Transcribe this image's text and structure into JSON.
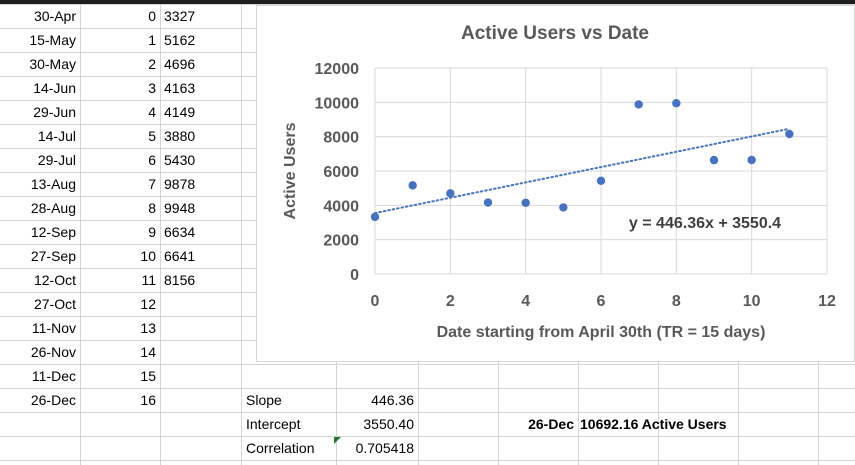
{
  "rows": [
    {
      "date": "30-Apr",
      "idx": "0",
      "users": "3327"
    },
    {
      "date": "15-May",
      "idx": "1",
      "users": "5162"
    },
    {
      "date": "30-May",
      "idx": "2",
      "users": "4696"
    },
    {
      "date": "14-Jun",
      "idx": "3",
      "users": "4163"
    },
    {
      "date": "29-Jun",
      "idx": "4",
      "users": "4149"
    },
    {
      "date": "14-Jul",
      "idx": "5",
      "users": "3880"
    },
    {
      "date": "29-Jul",
      "idx": "6",
      "users": "5430"
    },
    {
      "date": "13-Aug",
      "idx": "7",
      "users": "9878"
    },
    {
      "date": "28-Aug",
      "idx": "8",
      "users": "9948"
    },
    {
      "date": "12-Sep",
      "idx": "9",
      "users": "6634"
    },
    {
      "date": "27-Sep",
      "idx": "10",
      "users": "6641"
    },
    {
      "date": "12-Oct",
      "idx": "11",
      "users": "8156"
    },
    {
      "date": "27-Oct",
      "idx": "12",
      "users": ""
    },
    {
      "date": "11-Nov",
      "idx": "13",
      "users": ""
    },
    {
      "date": "26-Nov",
      "idx": "14",
      "users": ""
    },
    {
      "date": "11-Dec",
      "idx": "15",
      "users": ""
    },
    {
      "date": "26-Dec",
      "idx": "16",
      "users": ""
    }
  ],
  "stats": {
    "slope_label": "Slope",
    "slope_value": "446.36",
    "intercept_label": "Intercept",
    "intercept_value": "3550.40",
    "correlation_label": "Correlation",
    "correlation_value": "0.705418"
  },
  "prediction": {
    "date": "26-Dec",
    "text": "10692.16 Active Users"
  },
  "chart_data": {
    "type": "scatter",
    "title": "Active Users vs Date",
    "xlabel": "Date starting from April 30th (TR = 15 days)",
    "ylabel": "Active Users",
    "xlim": [
      0,
      12
    ],
    "ylim": [
      0,
      12000
    ],
    "xticks": [
      "0",
      "2",
      "4",
      "6",
      "8",
      "10",
      "12"
    ],
    "yticks": [
      "0",
      "2000",
      "4000",
      "6000",
      "8000",
      "10000",
      "12000"
    ],
    "x": [
      0,
      1,
      2,
      3,
      4,
      5,
      6,
      7,
      8,
      9,
      10,
      11
    ],
    "y": [
      3327,
      5162,
      4696,
      4163,
      4149,
      3880,
      5430,
      9878,
      9948,
      6634,
      6641,
      8156
    ],
    "trendline": {
      "slope": 446.36,
      "intercept": 3550.4,
      "label": "y = 446.36x + 3550.4",
      "style": "dotted"
    },
    "grid": true,
    "point_color": "#4472c4"
  }
}
